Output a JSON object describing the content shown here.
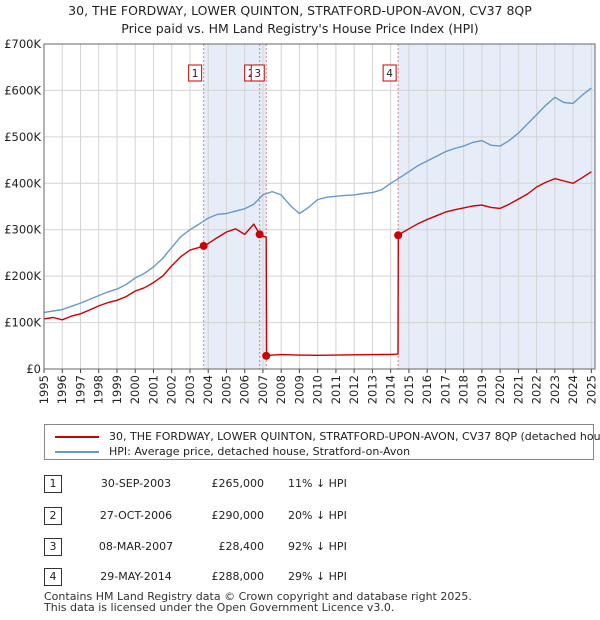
{
  "chart_data": {
    "type": "line",
    "title": "30, THE FORDWAY, LOWER QUINTON, STRATFORD-UPON-AVON, CV37 8QP",
    "subtitle": "Price paid vs. HM Land Registry's House Price Index (HPI)",
    "xlabel": "",
    "ylabel": "",
    "xlim": [
      1995,
      2025.2
    ],
    "ylim": [
      0,
      700000
    ],
    "y_ticks": [
      {
        "value": 0,
        "label": "£0"
      },
      {
        "value": 100000,
        "label": "£100K"
      },
      {
        "value": 200000,
        "label": "£200K"
      },
      {
        "value": 300000,
        "label": "£300K"
      },
      {
        "value": 400000,
        "label": "£400K"
      },
      {
        "value": 500000,
        "label": "£500K"
      },
      {
        "value": 600000,
        "label": "£600K"
      },
      {
        "value": 700000,
        "label": "£700K"
      }
    ],
    "x_ticks": [
      "1995",
      "1996",
      "1997",
      "1998",
      "1999",
      "2000",
      "2001",
      "2002",
      "2003",
      "2004",
      "2005",
      "2006",
      "2007",
      "2008",
      "2009",
      "2010",
      "2011",
      "2012",
      "2013",
      "2014",
      "2015",
      "2016",
      "2017",
      "2018",
      "2019",
      "2020",
      "2021",
      "2022",
      "2023",
      "2024",
      "2025"
    ],
    "grid": true,
    "series": [
      {
        "name": "30, THE FORDWAY, LOWER QUINTON, STRATFORD-UPON-AVON, CV37 8QP (detached house)",
        "color": "#cc0000",
        "x": [
          1995.0,
          1995.5,
          1996.0,
          1996.5,
          1997.0,
          1997.5,
          1998.0,
          1998.5,
          1999.0,
          1999.5,
          2000.0,
          2000.5,
          2001.0,
          2001.5,
          2002.0,
          2002.5,
          2003.0,
          2003.5,
          2003.75,
          2004.0,
          2004.5,
          2005.0,
          2005.5,
          2006.0,
          2006.5,
          2006.82,
          2007.0,
          2007.18,
          2007.2,
          2007.5,
          2008.0,
          2009.0,
          2010.0,
          2011.0,
          2012.0,
          2013.0,
          2014.0,
          2014.4,
          2014.42,
          2014.6,
          2015.0,
          2015.5,
          2016.0,
          2016.5,
          2017.0,
          2017.5,
          2018.0,
          2018.5,
          2019.0,
          2019.5,
          2020.0,
          2020.5,
          2021.0,
          2021.5,
          2022.0,
          2022.5,
          2023.0,
          2023.5,
          2024.0,
          2024.5,
          2025.0
        ],
        "y": [
          108000,
          111000,
          106000,
          114000,
          119000,
          127000,
          136000,
          143000,
          148000,
          156000,
          168000,
          175000,
          186000,
          200000,
          222000,
          242000,
          256000,
          262000,
          265000,
          270000,
          283000,
          295000,
          302000,
          290000,
          312000,
          290000,
          286000,
          284000,
          28400,
          30000,
          31000,
          30000,
          29500,
          30000,
          30500,
          31000,
          31500,
          32000,
          288000,
          293000,
          302000,
          313000,
          322000,
          330000,
          338000,
          343000,
          347000,
          351000,
          353000,
          348000,
          346000,
          355000,
          366000,
          377000,
          392000,
          402000,
          410000,
          405000,
          400000,
          412000,
          425000
        ]
      },
      {
        "name": "HPI: Average price, detached house, Stratford-on-Avon",
        "color": "#6699cc",
        "x": [
          1995.0,
          1995.5,
          1996.0,
          1996.5,
          1997.0,
          1997.5,
          1998.0,
          1998.5,
          1999.0,
          1999.5,
          2000.0,
          2000.5,
          2001.0,
          2001.5,
          2002.0,
          2002.5,
          2003.0,
          2003.5,
          2004.0,
          2004.5,
          2005.0,
          2005.5,
          2006.0,
          2006.5,
          2007.0,
          2007.5,
          2008.0,
          2008.5,
          2009.0,
          2009.5,
          2010.0,
          2010.5,
          2011.0,
          2011.5,
          2012.0,
          2012.5,
          2013.0,
          2013.5,
          2014.0,
          2014.5,
          2015.0,
          2015.5,
          2016.0,
          2016.5,
          2017.0,
          2017.5,
          2018.0,
          2018.5,
          2019.0,
          2019.5,
          2020.0,
          2020.5,
          2021.0,
          2021.5,
          2022.0,
          2022.5,
          2023.0,
          2023.5,
          2024.0,
          2024.5,
          2025.0
        ],
        "y": [
          122000,
          125000,
          128000,
          135000,
          142000,
          150000,
          158000,
          166000,
          172000,
          182000,
          196000,
          206000,
          220000,
          238000,
          262000,
          285000,
          300000,
          312000,
          325000,
          333000,
          335000,
          340000,
          345000,
          355000,
          375000,
          382000,
          375000,
          352000,
          335000,
          348000,
          365000,
          370000,
          372000,
          374000,
          375000,
          378000,
          380000,
          386000,
          400000,
          412000,
          425000,
          438000,
          448000,
          458000,
          468000,
          475000,
          480000,
          488000,
          492000,
          482000,
          480000,
          492000,
          508000,
          528000,
          548000,
          568000,
          585000,
          574000,
          572000,
          590000,
          605000
        ]
      }
    ],
    "sale_markers": [
      {
        "label": "1",
        "x": 2003.75,
        "y": 265000
      },
      {
        "label": "2",
        "x": 2006.82,
        "y": 290000
      },
      {
        "label": "3",
        "x": 2007.18,
        "y": 28400
      },
      {
        "label": "4",
        "x": 2014.41,
        "y": 288000
      }
    ],
    "shaded_ranges": [
      [
        2003.75,
        2007.18
      ],
      [
        2014.41,
        2025.2
      ]
    ]
  },
  "legend": {
    "property": "30, THE FORDWAY, LOWER QUINTON, STRATFORD-UPON-AVON, CV37 8QP (detached house)",
    "hpi": "HPI: Average price, detached house, Stratford-on-Avon"
  },
  "sales": [
    {
      "num": "1",
      "date": "30-SEP-2003",
      "price": "£265,000",
      "hpi": "11% ↓ HPI"
    },
    {
      "num": "2",
      "date": "27-OCT-2006",
      "price": "£290,000",
      "hpi": "20% ↓ HPI"
    },
    {
      "num": "3",
      "date": "08-MAR-2007",
      "price": "£28,400",
      "hpi": "92% ↓ HPI"
    },
    {
      "num": "4",
      "date": "29-MAY-2014",
      "price": "£288,000",
      "hpi": "29% ↓ HPI"
    }
  ],
  "footer": {
    "line1": "Contains HM Land Registry data © Crown copyright and database right 2025.",
    "line2": "This data is licensed under the Open Government Licence v3.0."
  }
}
